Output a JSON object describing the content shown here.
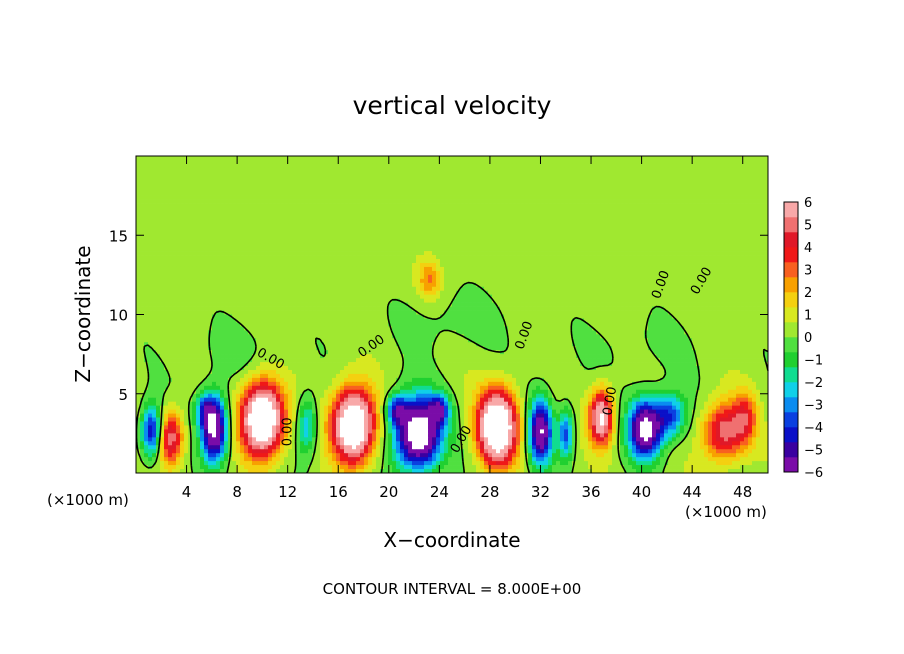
{
  "chart_data": {
    "type": "heatmap",
    "title": "vertical velocity",
    "xlabel": "X−coordinate",
    "ylabel": "Z−coordinate",
    "x_unit_left": "(×1000 m)",
    "x_unit_right": "(×1000 m)",
    "footer": "CONTOUR INTERVAL = 8.000E+00",
    "contour_label": "0.00",
    "xlim": [
      0,
      50
    ],
    "ylim": [
      0,
      20
    ],
    "x_ticks": [
      4,
      8,
      12,
      16,
      20,
      24,
      28,
      32,
      36,
      40,
      44,
      48
    ],
    "y_ticks": [
      5,
      10,
      15
    ],
    "colorbar": {
      "min": -6,
      "max": 6,
      "ticks": [
        "6",
        "5",
        "4",
        "3",
        "2",
        "1",
        "0",
        "−1",
        "−2",
        "−3",
        "−4",
        "−5",
        "−6"
      ],
      "colors": [
        "#7a0ca8",
        "#3a00a0",
        "#0a10c8",
        "#0a40e0",
        "#0a8cf0",
        "#10d0e8",
        "#10dc90",
        "#20d030",
        "#50e040",
        "#a0e830",
        "#d8e820",
        "#f4d010",
        "#f8a000",
        "#f86020",
        "#f01818",
        "#e01828",
        "#f07070",
        "#f8a8a8"
      ]
    },
    "background_value": 0.3,
    "cells": [
      {
        "x": 2.8,
        "z": 2.2,
        "sx": 0.9,
        "sz": 1.6,
        "w": 5
      },
      {
        "x": 1.2,
        "z": 2.6,
        "sx": 0.8,
        "sz": 1.6,
        "w": -5
      },
      {
        "x": 6.2,
        "z": 2.8,
        "sx": 1.0,
        "sz": 2.0,
        "w": -8
      },
      {
        "x": 5.4,
        "z": 4.0,
        "sx": 0.7,
        "sz": 1.0,
        "w": -3
      },
      {
        "x": 10.0,
        "z": 3.4,
        "sx": 1.6,
        "sz": 2.2,
        "w": 10
      },
      {
        "x": 13.5,
        "z": 3.0,
        "sx": 0.8,
        "sz": 1.8,
        "w": -3
      },
      {
        "x": 17.2,
        "z": 3.0,
        "sx": 1.6,
        "sz": 2.2,
        "w": 10
      },
      {
        "x": 22.3,
        "z": 2.5,
        "sx": 1.8,
        "sz": 2.2,
        "w": -9
      },
      {
        "x": 24.0,
        "z": 4.0,
        "sx": 0.8,
        "sz": 0.9,
        "w": -4
      },
      {
        "x": 20.6,
        "z": 4.0,
        "sx": 0.8,
        "sz": 0.9,
        "w": -4
      },
      {
        "x": 28.6,
        "z": 2.9,
        "sx": 1.5,
        "sz": 2.2,
        "w": 10
      },
      {
        "x": 32.0,
        "z": 2.6,
        "sx": 0.9,
        "sz": 2.0,
        "w": -7
      },
      {
        "x": 34.0,
        "z": 2.5,
        "sx": 0.6,
        "sz": 1.6,
        "w": -4
      },
      {
        "x": 36.8,
        "z": 3.5,
        "sx": 0.9,
        "sz": 1.7,
        "w": 7
      },
      {
        "x": 40.3,
        "z": 2.8,
        "sx": 1.3,
        "sz": 1.8,
        "w": -8
      },
      {
        "x": 42.3,
        "z": 3.6,
        "sx": 1.2,
        "sz": 1.4,
        "w": -4
      },
      {
        "x": 46.5,
        "z": 2.6,
        "sx": 1.6,
        "sz": 1.8,
        "w": 5
      },
      {
        "x": 48.2,
        "z": 3.5,
        "sx": 0.9,
        "sz": 1.6,
        "w": 3
      },
      {
        "x": 23.2,
        "z": 12.2,
        "sx": 0.9,
        "sz": 1.2,
        "w": 2.4
      },
      {
        "x": 25.0,
        "z": 9.5,
        "sx": 4.0,
        "sz": 2.0,
        "w": -0.6
      },
      {
        "x": 8.0,
        "z": 7.5,
        "sx": 4.0,
        "sz": 2.0,
        "w": -0.5
      },
      {
        "x": 40.0,
        "z": 8.0,
        "sx": 5.0,
        "sz": 2.0,
        "w": -0.4
      }
    ]
  }
}
